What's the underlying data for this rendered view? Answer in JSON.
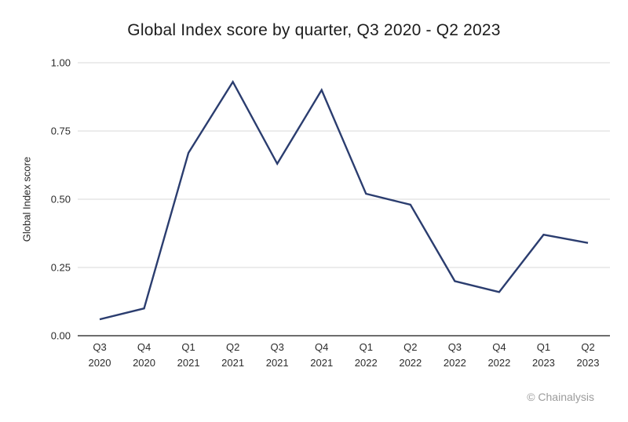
{
  "chart_data": {
    "type": "line",
    "title": "Global Index score by quarter, Q3 2020 - Q2 2023",
    "xlabel": "",
    "ylabel": "Global Index score",
    "categories": [
      "Q3 2020",
      "Q4 2020",
      "Q1 2021",
      "Q2 2021",
      "Q3 2021",
      "Q4 2021",
      "Q1 2022",
      "Q2 2022",
      "Q3 2022",
      "Q4 2022",
      "Q1 2023",
      "Q2 2023"
    ],
    "series": [
      {
        "name": "Global Index score",
        "values": [
          0.06,
          0.1,
          0.67,
          0.93,
          0.63,
          0.9,
          0.52,
          0.48,
          0.2,
          0.16,
          0.37,
          0.34
        ]
      }
    ],
    "ylim": [
      0,
      1
    ],
    "yticks": [
      {
        "value": 0.0,
        "label": "0.00"
      },
      {
        "value": 0.25,
        "label": "0.25"
      },
      {
        "value": 0.5,
        "label": "0.50"
      },
      {
        "value": 0.75,
        "label": "0.75"
      },
      {
        "value": 1.0,
        "label": "1.00"
      }
    ],
    "grid": "horizontal",
    "legend": "none",
    "colors": {
      "line": "#2b3d6f",
      "gridline": "#d9d9d9",
      "axis_line": "#3d3d3d",
      "tick_text": "#2b2b2b",
      "title_text": "#1c1c1c",
      "muted_text": "#9b9b9b"
    }
  },
  "footer": {
    "attribution": "© Chainalysis"
  }
}
